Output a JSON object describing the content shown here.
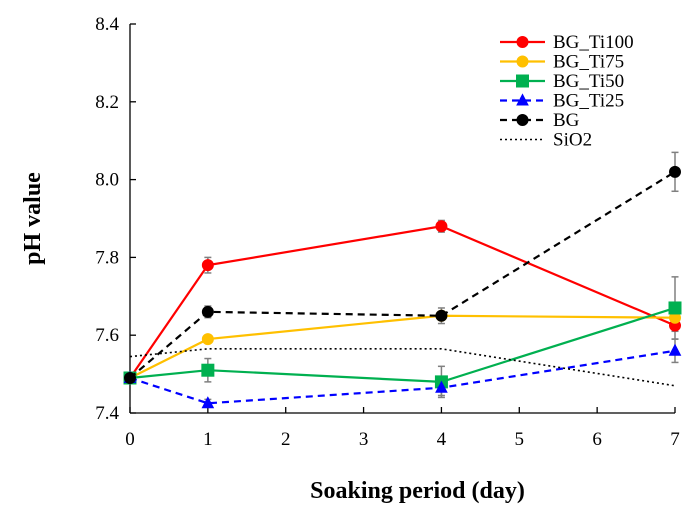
{
  "chart_data": {
    "type": "line",
    "title": "",
    "xlabel": "Soaking period (day)",
    "ylabel": "pH value",
    "xlim": [
      0,
      7
    ],
    "ylim": [
      7.4,
      8.4
    ],
    "x_ticks": [
      "0",
      "1",
      "2",
      "3",
      "4",
      "5",
      "6",
      "7"
    ],
    "y_ticks": [
      "7.4",
      "7.6",
      "7.8",
      "8.0",
      "8.2",
      "8.4"
    ],
    "x": [
      0,
      1,
      4,
      7
    ],
    "legend_position": "top-right",
    "series": [
      {
        "name": "BG_Ti100",
        "color": "#ff0000",
        "dash": "solid",
        "marker": "circle",
        "values": [
          7.49,
          7.78,
          7.88,
          7.625
        ],
        "errors": [
          0.005,
          0.02,
          0.015,
          0.015
        ]
      },
      {
        "name": "BG_Ti75",
        "color": "#ffc000",
        "dash": "solid",
        "marker": "circle",
        "values": [
          7.49,
          7.59,
          7.65,
          7.645
        ],
        "errors": [
          0.005,
          0.01,
          0.01,
          0.01
        ]
      },
      {
        "name": "BG_Ti50",
        "color": "#00b050",
        "dash": "solid",
        "marker": "square",
        "values": [
          7.49,
          7.51,
          7.48,
          7.67
        ],
        "errors": [
          0.005,
          0.03,
          0.04,
          0.08
        ]
      },
      {
        "name": "BG_Ti25",
        "color": "#0000ff",
        "dash": "dashed",
        "marker": "triangle",
        "values": [
          7.49,
          7.425,
          7.465,
          7.56
        ],
        "errors": [
          0.005,
          0.01,
          0.02,
          0.03
        ]
      },
      {
        "name": "BG",
        "color": "#000000",
        "dash": "dashed",
        "marker": "circle",
        "values": [
          7.49,
          7.66,
          7.65,
          8.02
        ],
        "errors": [
          0.005,
          0.015,
          0.02,
          0.05
        ]
      },
      {
        "name": "SiO2",
        "color": "#000000",
        "dash": "dotted",
        "marker": "none",
        "values": [
          7.545,
          7.565,
          7.565,
          7.47
        ],
        "errors": [
          0,
          0,
          0,
          0
        ]
      }
    ]
  }
}
